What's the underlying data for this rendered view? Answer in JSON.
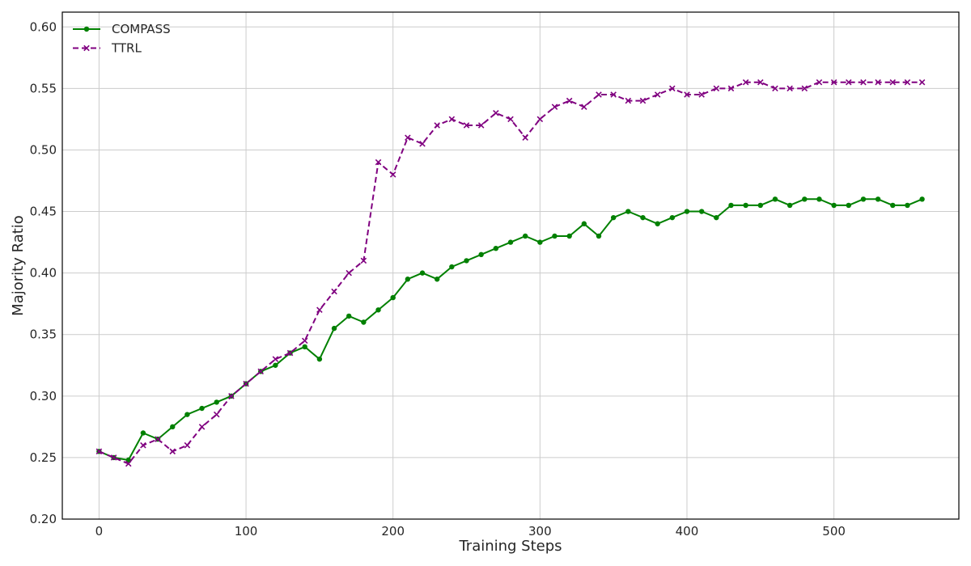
{
  "chart_data": {
    "type": "line",
    "title": "",
    "xlabel": "Training Steps",
    "ylabel": "Majority Ratio",
    "xlim": [
      -25,
      585
    ],
    "ylim": [
      0.2,
      0.612
    ],
    "xticks": [
      0,
      100,
      200,
      300,
      400,
      500
    ],
    "yticks": [
      0.2,
      0.25,
      0.3,
      0.35,
      0.4,
      0.45,
      0.5,
      0.55,
      0.6
    ],
    "ytick_labels": [
      "0.20",
      "0.25",
      "0.30",
      "0.35",
      "0.40",
      "0.45",
      "0.50",
      "0.55",
      "0.60"
    ],
    "grid": true,
    "legend_position": "top-left",
    "series": [
      {
        "name": "COMPASS",
        "color": "#008000",
        "linestyle": "solid",
        "marker": "circle",
        "x": [
          0,
          10,
          20,
          30,
          40,
          50,
          60,
          70,
          80,
          90,
          100,
          110,
          120,
          130,
          140,
          150,
          160,
          170,
          180,
          190,
          200,
          210,
          220,
          230,
          240,
          250,
          260,
          270,
          280,
          290,
          300,
          310,
          320,
          330,
          340,
          350,
          360,
          370,
          380,
          390,
          400,
          410,
          420,
          430,
          440,
          450,
          460,
          470,
          480,
          490,
          500,
          510,
          520,
          530,
          540,
          550,
          560
        ],
        "values": [
          0.255,
          0.25,
          0.248,
          0.27,
          0.265,
          0.275,
          0.285,
          0.29,
          0.295,
          0.3,
          0.31,
          0.32,
          0.325,
          0.335,
          0.34,
          0.33,
          0.355,
          0.365,
          0.36,
          0.37,
          0.38,
          0.395,
          0.4,
          0.395,
          0.405,
          0.41,
          0.415,
          0.42,
          0.425,
          0.43,
          0.425,
          0.43,
          0.43,
          0.44,
          0.43,
          0.445,
          0.45,
          0.445,
          0.44,
          0.445,
          0.45,
          0.45,
          0.445,
          0.455,
          0.455,
          0.455,
          0.46,
          0.455,
          0.46,
          0.46,
          0.455,
          0.455,
          0.46,
          0.46,
          0.455,
          0.455,
          0.46
        ]
      },
      {
        "name": "TTRL",
        "color": "#800080",
        "linestyle": "dashed",
        "marker": "x",
        "x": [
          0,
          10,
          20,
          30,
          40,
          50,
          60,
          70,
          80,
          90,
          100,
          110,
          120,
          130,
          140,
          150,
          160,
          170,
          180,
          190,
          200,
          210,
          220,
          230,
          240,
          250,
          260,
          270,
          280,
          290,
          300,
          310,
          320,
          330,
          340,
          350,
          360,
          370,
          380,
          390,
          400,
          410,
          420,
          430,
          440,
          450,
          460,
          470,
          480,
          490,
          500,
          510,
          520,
          530,
          540,
          550,
          560
        ],
        "values": [
          0.255,
          0.25,
          0.245,
          0.26,
          0.265,
          0.255,
          0.26,
          0.275,
          0.285,
          0.3,
          0.31,
          0.32,
          0.33,
          0.335,
          0.345,
          0.37,
          0.385,
          0.4,
          0.41,
          0.49,
          0.48,
          0.51,
          0.505,
          0.52,
          0.525,
          0.52,
          0.52,
          0.53,
          0.525,
          0.51,
          0.525,
          0.535,
          0.54,
          0.535,
          0.545,
          0.545,
          0.54,
          0.54,
          0.545,
          0.55,
          0.545,
          0.545,
          0.55,
          0.55,
          0.555,
          0.555,
          0.55,
          0.55,
          0.55,
          0.555,
          0.555,
          0.555,
          0.555,
          0.555,
          0.555,
          0.555,
          0.555
        ]
      }
    ]
  }
}
